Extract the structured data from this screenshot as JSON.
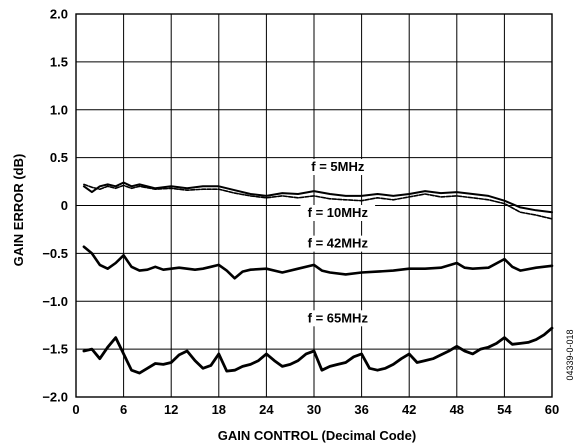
{
  "chart_data": {
    "type": "line",
    "xlabel": "GAIN CONTROL (Decimal Code)",
    "ylabel": "GAIN ERROR (dB)",
    "xlim": [
      0,
      60
    ],
    "ylim": [
      -2.0,
      2.0
    ],
    "x_ticks": [
      "0",
      "6",
      "12",
      "18",
      "24",
      "30",
      "36",
      "42",
      "48",
      "54",
      "60"
    ],
    "y_ticks": [
      "2.0",
      "1.5",
      "1.0",
      "0.5",
      "0",
      "−0.5",
      "−1.0",
      "−1.5",
      "−2.0"
    ],
    "grid": true,
    "annotations": [
      "f = 5MHz",
      "f = 10MHz",
      "f = 42MHz",
      "f = 65MHz"
    ],
    "figure_id": "04339-0-018",
    "series": [
      {
        "name": "f = 5MHz",
        "x": [
          1,
          2,
          3,
          4,
          5,
          6,
          7,
          8,
          10,
          12,
          14,
          16,
          18,
          20,
          22,
          24,
          26,
          28,
          30,
          32,
          34,
          36,
          38,
          40,
          42,
          44,
          46,
          48,
          50,
          52,
          54,
          56,
          58,
          60
        ],
        "y": [
          0.2,
          0.14,
          0.2,
          0.22,
          0.2,
          0.24,
          0.2,
          0.22,
          0.18,
          0.2,
          0.18,
          0.2,
          0.2,
          0.16,
          0.12,
          0.1,
          0.13,
          0.12,
          0.15,
          0.12,
          0.1,
          0.1,
          0.12,
          0.1,
          0.12,
          0.15,
          0.13,
          0.14,
          0.12,
          0.1,
          0.05,
          -0.02,
          -0.05,
          -0.07
        ]
      },
      {
        "name": "f = 10MHz",
        "x": [
          1,
          2,
          3,
          4,
          5,
          6,
          7,
          8,
          10,
          12,
          14,
          16,
          18,
          20,
          22,
          24,
          26,
          28,
          30,
          32,
          34,
          36,
          38,
          40,
          42,
          44,
          46,
          48,
          50,
          52,
          54,
          56,
          58,
          60
        ],
        "y": [
          0.22,
          0.19,
          0.17,
          0.2,
          0.18,
          0.21,
          0.18,
          0.2,
          0.17,
          0.18,
          0.16,
          0.17,
          0.17,
          0.13,
          0.1,
          0.08,
          0.1,
          0.08,
          0.1,
          0.07,
          0.06,
          0.05,
          0.08,
          0.06,
          0.09,
          0.12,
          0.09,
          0.1,
          0.08,
          0.06,
          0.02,
          -0.07,
          -0.1,
          -0.14
        ]
      },
      {
        "name": "f = 42MHz",
        "x": [
          1,
          2,
          3,
          4,
          5,
          6,
          7,
          8,
          9,
          10,
          11,
          12,
          13,
          14,
          15,
          16,
          17,
          18,
          19,
          20,
          21,
          22,
          24,
          26,
          28,
          30,
          31,
          32,
          34,
          36,
          38,
          40,
          42,
          44,
          46,
          48,
          49,
          50,
          52,
          54,
          55,
          56,
          58,
          60
        ],
        "y": [
          -0.43,
          -0.5,
          -0.62,
          -0.66,
          -0.6,
          -0.52,
          -0.64,
          -0.68,
          -0.67,
          -0.64,
          -0.67,
          -0.66,
          -0.65,
          -0.66,
          -0.67,
          -0.66,
          -0.64,
          -0.62,
          -0.68,
          -0.76,
          -0.69,
          -0.67,
          -0.66,
          -0.7,
          -0.66,
          -0.62,
          -0.68,
          -0.7,
          -0.72,
          -0.7,
          -0.69,
          -0.68,
          -0.66,
          -0.66,
          -0.65,
          -0.6,
          -0.65,
          -0.66,
          -0.65,
          -0.56,
          -0.64,
          -0.68,
          -0.65,
          -0.63
        ]
      },
      {
        "name": "f = 65MHz",
        "x": [
          1,
          2,
          3,
          4,
          5,
          6,
          7,
          8,
          9,
          10,
          11,
          12,
          13,
          14,
          15,
          16,
          17,
          18,
          19,
          20,
          21,
          22,
          23,
          24,
          25,
          26,
          27,
          28,
          29,
          30,
          31,
          32,
          33,
          34,
          35,
          36,
          37,
          38,
          39,
          40,
          41,
          42,
          43,
          44,
          45,
          46,
          47,
          48,
          49,
          50,
          51,
          52,
          53,
          54,
          55,
          56,
          57,
          58,
          59,
          60
        ],
        "y": [
          -1.52,
          -1.5,
          -1.6,
          -1.48,
          -1.38,
          -1.55,
          -1.72,
          -1.75,
          -1.7,
          -1.65,
          -1.66,
          -1.64,
          -1.56,
          -1.52,
          -1.62,
          -1.7,
          -1.67,
          -1.55,
          -1.73,
          -1.72,
          -1.68,
          -1.66,
          -1.62,
          -1.55,
          -1.62,
          -1.68,
          -1.66,
          -1.62,
          -1.55,
          -1.52,
          -1.72,
          -1.68,
          -1.66,
          -1.64,
          -1.58,
          -1.55,
          -1.7,
          -1.72,
          -1.7,
          -1.66,
          -1.6,
          -1.55,
          -1.64,
          -1.62,
          -1.6,
          -1.56,
          -1.52,
          -1.47,
          -1.52,
          -1.55,
          -1.5,
          -1.48,
          -1.44,
          -1.38,
          -1.45,
          -1.44,
          -1.43,
          -1.4,
          -1.35,
          -1.28
        ]
      }
    ]
  }
}
